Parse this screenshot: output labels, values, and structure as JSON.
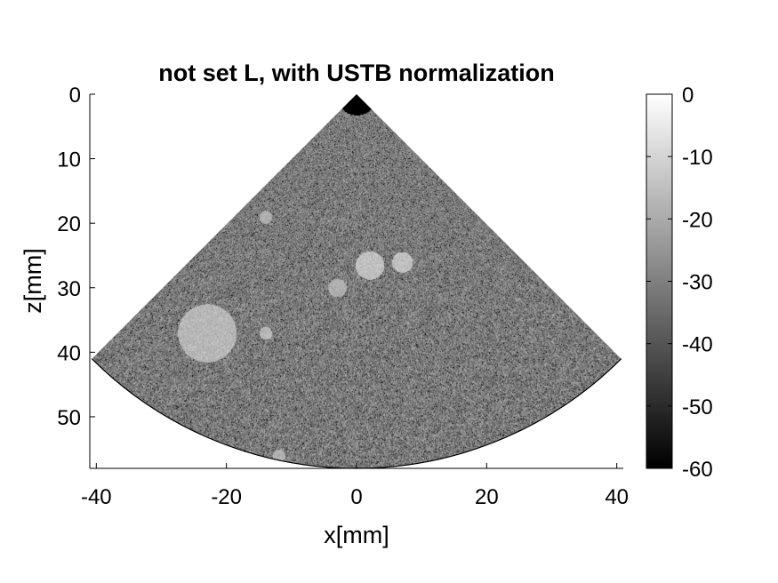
{
  "chart_data": {
    "type": "heatmap",
    "title": "not set L, with USTB normalization",
    "xlabel": "x[mm]",
    "ylabel": "z[mm]",
    "xlim": [
      -41,
      41
    ],
    "ylim": [
      0,
      58
    ],
    "y_reversed": true,
    "x_ticks": [
      "-40",
      "-20",
      "0",
      "20",
      "40"
    ],
    "x_tick_values": [
      -40,
      -20,
      0,
      20,
      40
    ],
    "y_ticks": [
      "0",
      "10",
      "20",
      "30",
      "40",
      "50"
    ],
    "y_tick_values": [
      0,
      10,
      20,
      30,
      40,
      50
    ],
    "colormap": "gray",
    "colorbar": {
      "range": [
        -60,
        0
      ],
      "ticks": [
        "0",
        "-10",
        "-20",
        "-30",
        "-40",
        "-50",
        "-60"
      ],
      "tick_values": [
        0,
        -10,
        -20,
        -30,
        -40,
        -50,
        -60
      ]
    },
    "sector": {
      "apex": [
        0,
        0
      ],
      "half_angle_deg": 45,
      "max_depth": 58,
      "bright_regions": [
        {
          "x": -23,
          "z": 37,
          "r": 4.5,
          "level": -12
        },
        {
          "x": 2,
          "z": 26.5,
          "r": 2.2,
          "level": -10
        },
        {
          "x": 7,
          "z": 26,
          "r": 1.6,
          "level": -10
        },
        {
          "x": -3,
          "z": 30,
          "r": 1.4,
          "level": -14
        },
        {
          "x": -14,
          "z": 37,
          "r": 1.0,
          "level": -12
        },
        {
          "x": -14,
          "z": 19,
          "r": 1.0,
          "level": -14
        },
        {
          "x": -12,
          "z": 56,
          "r": 1.0,
          "level": -14
        }
      ]
    }
  }
}
